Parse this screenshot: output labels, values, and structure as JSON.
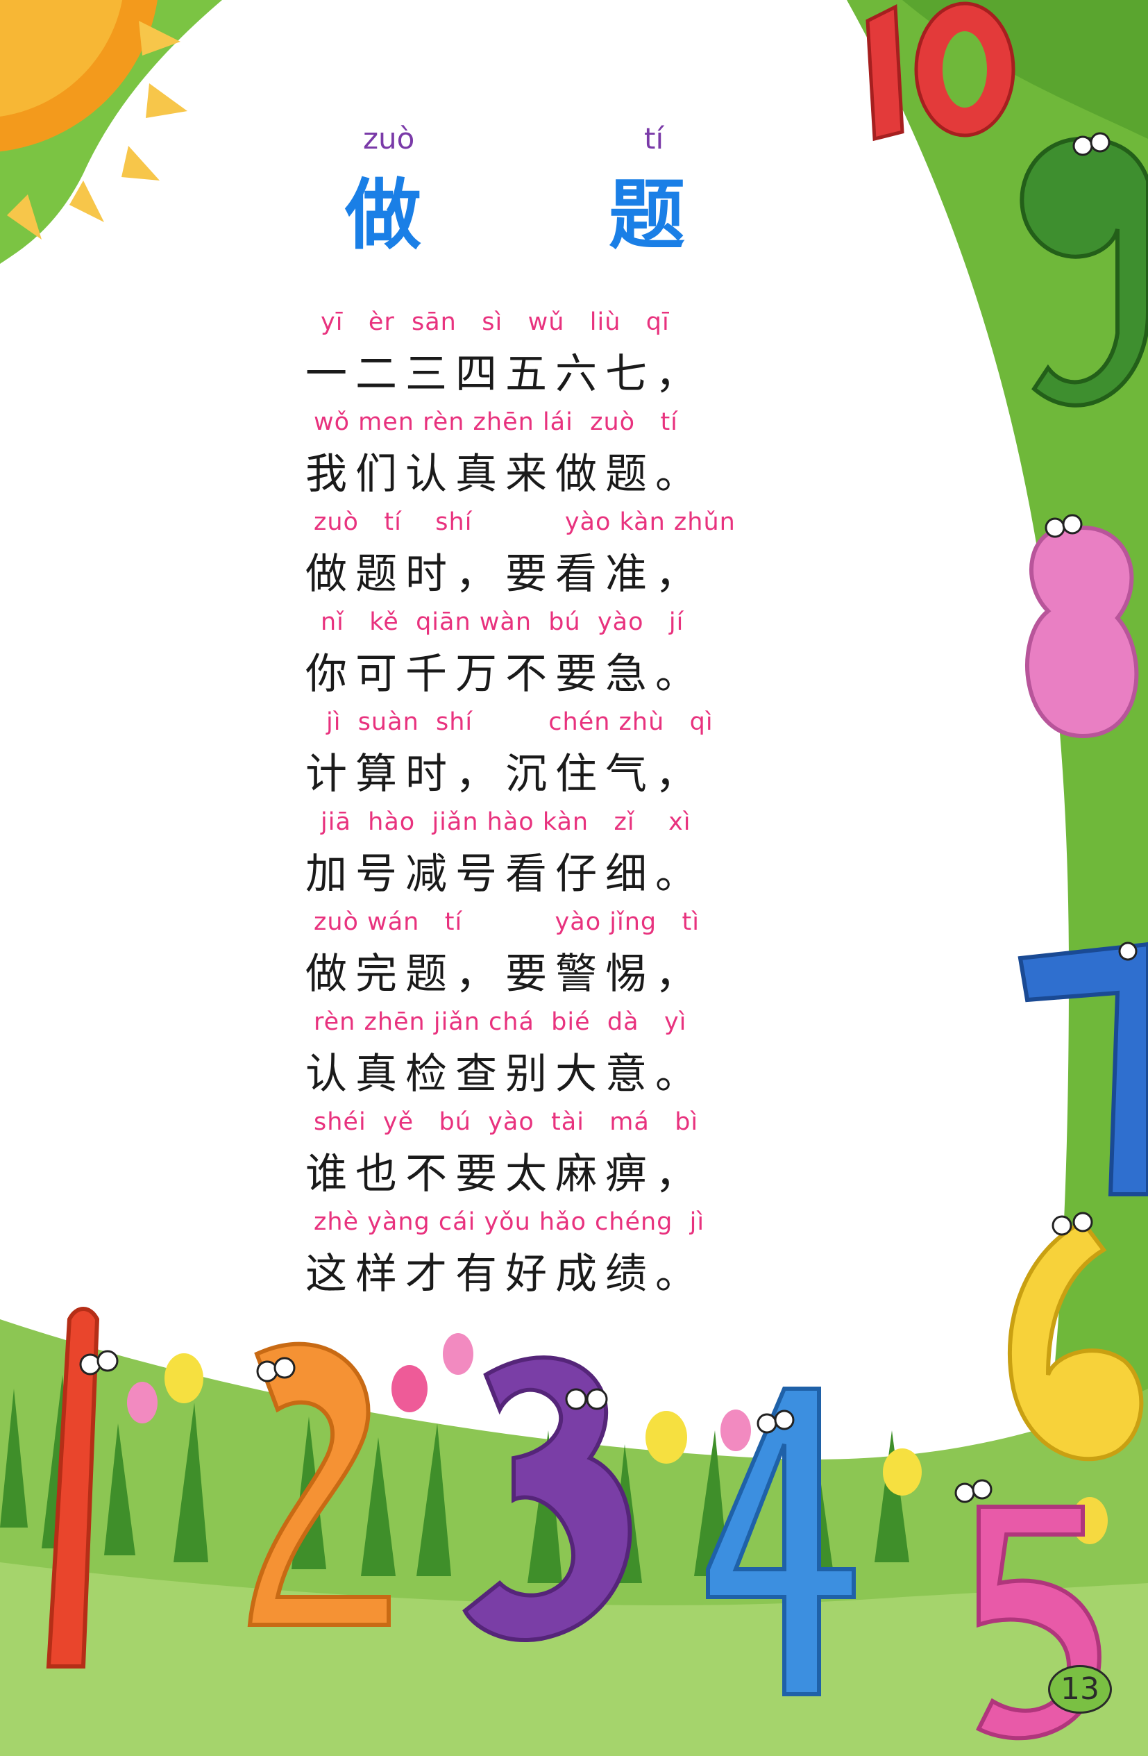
{
  "title": {
    "pinyin": [
      "zuò",
      "tí"
    ],
    "hanzi": [
      "做",
      "题"
    ]
  },
  "poem": [
    {
      "pinyin": "yī   èr  sān   sì   wǔ   liù   qī",
      "hanzi": "一二三四五六七，"
    },
    {
      "pinyin": "wǒ men rèn zhēn lái  zuò   tí",
      "hanzi": "我们认真来做题。"
    },
    {
      "pinyin": "zuò   tí    shí           yào kàn zhǔn",
      "hanzi": "做题时，要看准，"
    },
    {
      "pinyin": "nǐ   kě  qiān wàn  bú  yào   jí",
      "hanzi": "你可千万不要急。"
    },
    {
      "pinyin": "jì  suàn  shí         chén zhù   qì",
      "hanzi": "计算时，沉住气，"
    },
    {
      "pinyin": "jiā  hào  jiǎn hào kàn   zǐ    xì",
      "hanzi": "加号减号看仔细。"
    },
    {
      "pinyin": "zuò wán   tí           yào jǐng   tì",
      "hanzi": "做完题，要警惕，"
    },
    {
      "pinyin": "rèn zhēn jiǎn chá  bié  dà   yì",
      "hanzi": "认真检查别大意。"
    },
    {
      "pinyin": "shéi  yě   bú  yào  tài   má   bì",
      "hanzi": "谁也不要太麻痹，"
    },
    {
      "pinyin": "zhè yàng cái yǒu hǎo chéng  jì",
      "hanzi": "这样才有好成绩。"
    }
  ],
  "page_number": "13",
  "illustration": {
    "background_colors": {
      "sky_top": "#ffffff",
      "grass": "#6fb83a",
      "sun": "#f39a1c"
    },
    "characters": [
      "number-1",
      "number-2",
      "number-3",
      "number-4",
      "number-5",
      "number-6",
      "number-7",
      "number-8",
      "number-9",
      "number-10"
    ]
  }
}
